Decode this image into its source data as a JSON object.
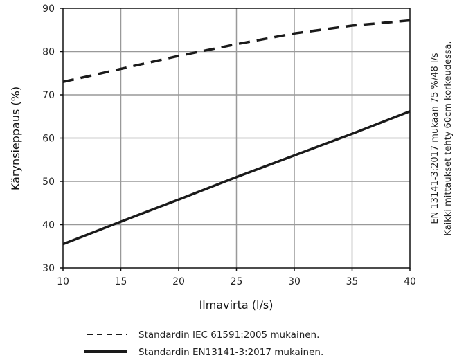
{
  "chart_data": {
    "type": "line",
    "title": "",
    "xlabel": "Ilmavirta (l/s)",
    "ylabel": "Kärynsieppaus (%)",
    "xlim": [
      10,
      40
    ],
    "ylim": [
      30,
      90
    ],
    "xticks": [
      "10",
      "15",
      "20",
      "25",
      "30",
      "35",
      "40"
    ],
    "yticks": [
      "30",
      "40",
      "50",
      "60",
      "70",
      "80",
      "90"
    ],
    "grid": true,
    "series": [
      {
        "name": "Standardin IEC 61591:2005 mukainen.",
        "style": "dashed",
        "x": [
          10,
          15,
          20,
          25,
          30,
          35,
          40
        ],
        "y": [
          73,
          76,
          79,
          81.7,
          84.2,
          86,
          87.2
        ]
      },
      {
        "name": "Standardin EN13141-3:2017 mukainen.",
        "style": "solid",
        "x": [
          10,
          15,
          20,
          25,
          30,
          35,
          40
        ],
        "y": [
          35.5,
          40.7,
          45.8,
          51,
          56,
          61,
          66.2
        ]
      }
    ],
    "side_note": [
      "EN 13141-3:2017 mukaan 75 %/48 l/s",
      "Kaikki mittaukset tehty 60cm korkeudessa."
    ],
    "legend_position": "bottom",
    "colors": {
      "line": "#1a1a1a",
      "grid": "#999999",
      "frame": "#111111"
    }
  }
}
